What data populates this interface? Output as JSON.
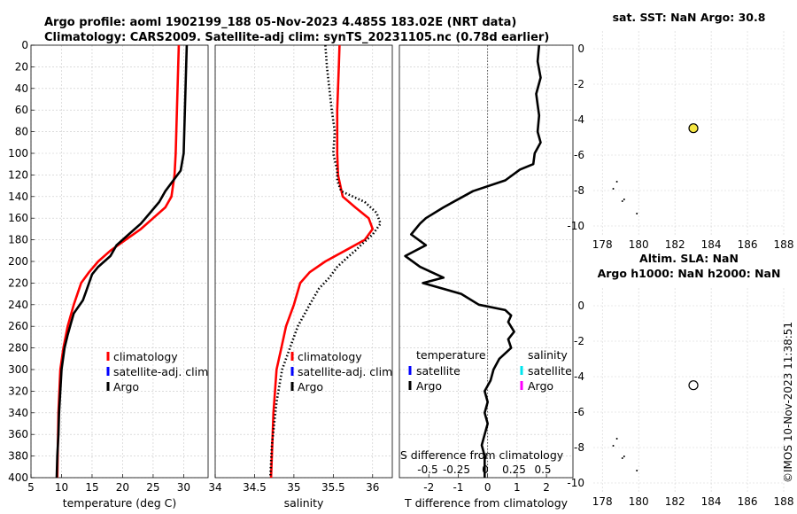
{
  "title_line1": "Argo profile: aoml 1902199_188 05-Nov-2023 4.485S 183.02E (NRT data)",
  "title_line2": "Climatology: CARS2009. Satellite-adj clim: synTS_20231105.nc (0.78d earlier)",
  "map1_title": "sat. SST: NaN Argo: 30.8",
  "map2_title_line1": "Altim. SLA: NaN",
  "map2_title_line2": "Argo h1000: NaN h2000: NaN",
  "credit": "©IMOS 10-Nov-2023 11:38:51",
  "colors": {
    "climatology": "#ff0000",
    "satellite_clim": "#0000ff",
    "argo": "#000000",
    "satellite_s": "#00e5ee",
    "argo_s": "#ff00ff",
    "marker_fill": "#f5e642"
  },
  "chart_data": [
    {
      "type": "line",
      "xlabel": "temperature (deg C)",
      "ylim": [
        0,
        400
      ],
      "xlim": [
        5,
        34
      ],
      "xticks": [
        5,
        10,
        15,
        20,
        25,
        30
      ],
      "yticks": [
        0,
        20,
        40,
        60,
        80,
        100,
        120,
        140,
        160,
        180,
        200,
        220,
        240,
        260,
        280,
        300,
        320,
        340,
        360,
        380,
        400
      ],
      "grid": true,
      "legend": [
        "climatology",
        "satellite-adj. clim",
        "Argo"
      ],
      "series": [
        {
          "name": "climatology",
          "x": [
            29.2,
            29.1,
            29.0,
            28.9,
            28.8,
            28.7,
            28.5,
            28.0,
            27.0,
            25.0,
            23.0,
            20.5,
            18.0,
            16.0,
            14.5,
            13.2,
            12.0,
            11.0,
            10.3,
            9.8,
            9.5,
            9.3
          ],
          "y": [
            0,
            20,
            40,
            60,
            80,
            100,
            120,
            140,
            150,
            160,
            170,
            180,
            190,
            200,
            210,
            220,
            240,
            260,
            280,
            300,
            340,
            400
          ]
        },
        {
          "name": "Argo",
          "x": [
            30.5,
            30.4,
            30.3,
            30.2,
            30.1,
            30.0,
            29.5,
            27.0,
            26.0,
            24.5,
            23.0,
            21.0,
            19.0,
            18.0,
            16.0,
            15.0,
            14.5,
            14.0,
            13.5,
            12.0,
            11.5,
            11.0,
            10.5,
            10.0,
            9.8,
            9.6,
            9.5,
            9.3,
            9.2
          ],
          "y": [
            0,
            20,
            40,
            60,
            80,
            100,
            116,
            135,
            145,
            155,
            165,
            175,
            185,
            195,
            205,
            212,
            220,
            228,
            236,
            248,
            258,
            268,
            280,
            300,
            320,
            340,
            360,
            380,
            400
          ]
        }
      ]
    },
    {
      "type": "line",
      "xlabel": "salinity",
      "ylim": [
        0,
        400
      ],
      "xlim": [
        34,
        36.25
      ],
      "xticks": [
        34,
        34.5,
        35,
        35.5,
        36
      ],
      "grid": true,
      "legend": [
        "climatology",
        "satellite-adj. clim",
        "Argo"
      ],
      "series": [
        {
          "name": "climatology",
          "x": [
            35.58,
            35.57,
            35.56,
            35.55,
            35.55,
            35.55,
            35.56,
            35.62,
            35.78,
            35.95,
            36.0,
            35.9,
            35.65,
            35.4,
            35.2,
            35.08,
            35.0,
            34.9,
            34.84,
            34.78,
            34.74,
            34.71
          ],
          "y": [
            0,
            20,
            40,
            60,
            80,
            100,
            120,
            140,
            150,
            160,
            170,
            180,
            190,
            200,
            210,
            220,
            240,
            260,
            280,
            300,
            340,
            400
          ]
        },
        {
          "name": "Argo",
          "x": [
            35.4,
            35.42,
            35.45,
            35.48,
            35.52,
            35.5,
            35.55,
            35.55,
            35.6,
            35.9,
            36.05,
            36.1,
            36.0,
            35.85,
            35.78,
            35.7,
            35.55,
            35.45,
            35.32,
            35.2,
            35.05,
            34.95,
            34.85,
            34.78,
            34.72,
            34.7
          ],
          "y": [
            0,
            20,
            40,
            60,
            80,
            100,
            116,
            125,
            135,
            145,
            155,
            165,
            175,
            185,
            190,
            195,
            205,
            215,
            225,
            240,
            260,
            280,
            300,
            330,
            370,
            400
          ]
        }
      ]
    },
    {
      "type": "line",
      "xlabel": "T difference from climatology",
      "x2label": "S difference from climatology",
      "ylim": [
        0,
        400
      ],
      "xlim": [
        -3,
        2.9
      ],
      "xticks": [
        -2,
        -1,
        0,
        1,
        2
      ],
      "x2ticks": [
        -0.5,
        -0.25,
        0,
        0.25,
        0.5
      ],
      "grid": true,
      "legend_t_title": "temperature",
      "legend_s_title": "salinity",
      "legend_t": [
        "satellite",
        "Argo"
      ],
      "legend_s": [
        "satellite",
        "Argo"
      ],
      "series": [
        {
          "name": "Argo",
          "x": [
            1.75,
            1.7,
            1.8,
            1.65,
            1.7,
            1.75,
            1.7,
            1.8,
            1.6,
            1.55,
            1.1,
            0.6,
            -0.5,
            -1.5,
            -2.1,
            -2.3,
            -2.6,
            -2.1,
            -2.8,
            -2.3,
            -1.9,
            -1.5,
            -2.2,
            -0.9,
            -0.3,
            0.6,
            0.8,
            0.7,
            0.9,
            0.7,
            0.8,
            0.4,
            0.2,
            0.1,
            -0.1,
            0.0,
            -0.1,
            0.0,
            -0.1,
            -0.2,
            -0.1,
            -0.1
          ],
          "y": [
            0,
            15,
            30,
            45,
            55,
            65,
            80,
            90,
            100,
            110,
            115,
            125,
            135,
            150,
            160,
            165,
            175,
            185,
            195,
            205,
            210,
            215,
            220,
            230,
            240,
            245,
            250,
            256,
            265,
            272,
            280,
            290,
            300,
            310,
            320,
            330,
            340,
            350,
            360,
            370,
            380,
            400
          ]
        }
      ]
    },
    {
      "type": "scatter",
      "title": "sat. SST: NaN Argo: 30.8",
      "xlim": [
        177.5,
        188
      ],
      "ylim": [
        -10.5,
        1
      ],
      "xticks": [
        178,
        180,
        182,
        184,
        186,
        188
      ],
      "yticks": [
        0,
        -2,
        -4,
        -6,
        -8,
        -10
      ],
      "grid": true,
      "marker": {
        "x": 183.02,
        "y": -4.485,
        "filled": true
      },
      "islands": [
        [
          178.6,
          -7.9
        ],
        [
          178.8,
          -7.5
        ],
        [
          179.1,
          -8.6
        ],
        [
          179.2,
          -8.5
        ],
        [
          179.9,
          -9.3
        ]
      ]
    },
    {
      "type": "scatter",
      "title": "Altim. SLA: NaN / Argo h1000: NaN h2000: NaN",
      "xlim": [
        177.5,
        188
      ],
      "ylim": [
        -10.5,
        1
      ],
      "xticks": [
        178,
        180,
        182,
        184,
        186,
        188
      ],
      "yticks": [
        0,
        -2,
        -4,
        -6,
        -8,
        -10
      ],
      "grid": true,
      "marker": {
        "x": 183.02,
        "y": -4.485,
        "filled": false
      },
      "islands": [
        [
          178.6,
          -7.9
        ],
        [
          178.8,
          -7.5
        ],
        [
          179.1,
          -8.6
        ],
        [
          179.2,
          -8.5
        ],
        [
          179.9,
          -9.3
        ]
      ]
    }
  ]
}
